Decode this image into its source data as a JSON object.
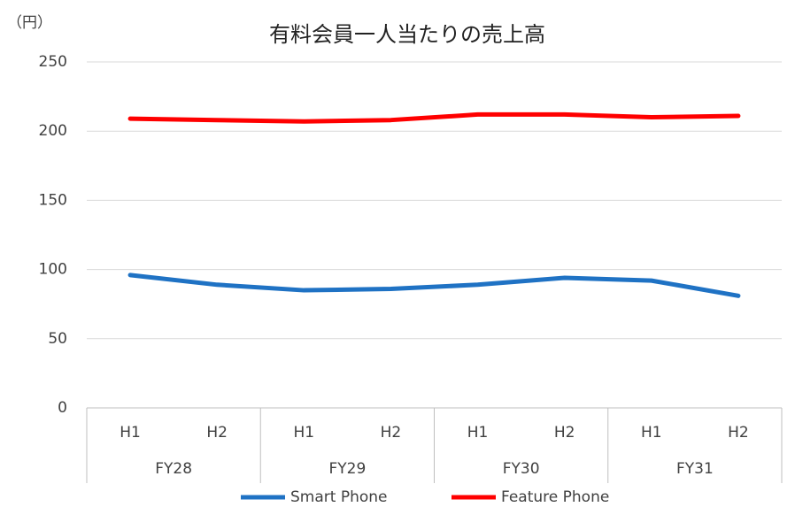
{
  "chart_data": {
    "type": "line",
    "title": "有料会員一人当たりの売上高",
    "y_axis_label": "（円）",
    "categories": [
      "H1",
      "H2",
      "H1",
      "H2",
      "H1",
      "H2",
      "H1",
      "H2"
    ],
    "groups": [
      "FY28",
      "FY29",
      "FY30",
      "FY31"
    ],
    "series": [
      {
        "name": "Smart Phone",
        "color": "#1f72c4",
        "values": [
          96,
          89,
          85,
          86,
          89,
          94,
          92,
          81
        ]
      },
      {
        "name": "Feature Phone",
        "color": "#ff0000",
        "values": [
          209,
          208,
          207,
          208,
          212,
          212,
          210,
          211
        ]
      }
    ],
    "ylim": [
      0,
      250
    ],
    "yticks": [
      0,
      50,
      100,
      150,
      200,
      250
    ],
    "grid": true,
    "legend": "bottom"
  }
}
